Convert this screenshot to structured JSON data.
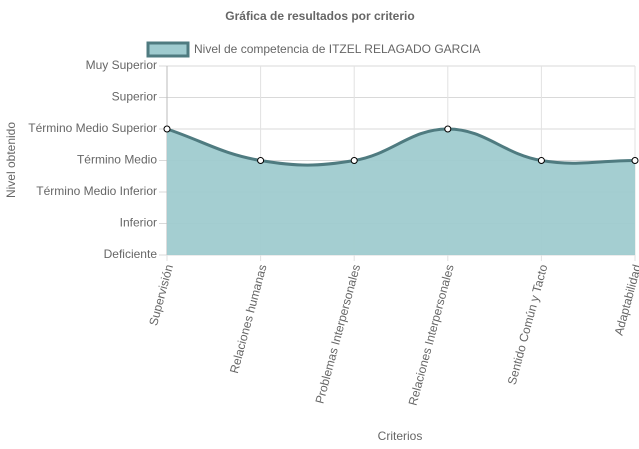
{
  "chart_data": {
    "type": "line",
    "title": "Gráfica de resultados por criterio",
    "x_label": "Criterios",
    "y_label": "Nivel obtenido",
    "categories": [
      "Supervisión",
      "Relaciones humanas",
      "Problemas Interpersonales",
      "Relaciones Interpersonales",
      "Sentido Común y Tacto",
      "Adaptabilidad"
    ],
    "series": [
      {
        "name": "Nivel de competencia de ITZEL RELAGADO GARCIA",
        "color": "#4f7b80",
        "fill_color": "#9fcbcf",
        "values": [
          4,
          3,
          3,
          4,
          3,
          3
        ]
      }
    ],
    "ylim": [
      0,
      6
    ],
    "yticks": [
      {
        "value": 0,
        "label": "Deficiente"
      },
      {
        "value": 1,
        "label": "Inferior"
      },
      {
        "value": 2,
        "label": "Término Medio Inferior"
      },
      {
        "value": 3,
        "label": "Término Medio"
      },
      {
        "value": 4,
        "label": "Término Medio Superior"
      },
      {
        "value": 5,
        "label": "Superior"
      },
      {
        "value": 6,
        "label": "Muy Superior"
      }
    ],
    "grid": true,
    "fill": true,
    "legend": "top"
  }
}
